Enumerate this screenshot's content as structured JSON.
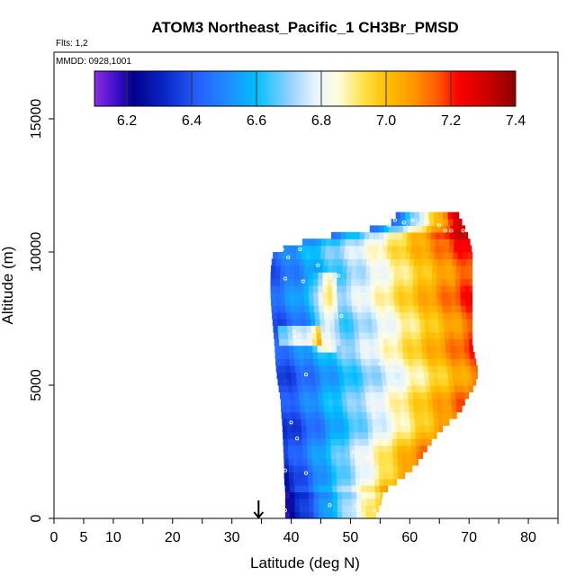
{
  "chart_data": {
    "type": "heatmap",
    "title": "ATOM3 Northeast_Pacific_1 CH3Br_PMSD",
    "flights_label": "Flts: 1,2",
    "dates_label": "MMDD: 0928,1001",
    "xlabel": "Latitude (deg N)",
    "ylabel": "Altitude (m)",
    "xlim": [
      0,
      85
    ],
    "ylim": [
      0,
      17500
    ],
    "x_ticks": [
      0,
      5,
      10,
      20,
      30,
      40,
      50,
      60,
      70,
      80
    ],
    "x_minor_ticks": [
      15,
      25,
      35,
      45,
      55,
      65,
      75,
      85
    ],
    "y_ticks": [
      0,
      5000,
      10000,
      15000
    ],
    "colorbar": {
      "min": 6.1,
      "max": 7.4,
      "ticks": [
        6.2,
        6.4,
        6.6,
        6.8,
        7.0,
        7.2,
        7.4
      ],
      "tick_labels": [
        "6.2",
        "6.4",
        "6.6",
        "6.8",
        "7.0",
        "7.2",
        "7.4"
      ],
      "stops": [
        {
          "v": 6.1,
          "c": "#8a2be2"
        },
        {
          "v": 6.17,
          "c": "#3a10c8"
        },
        {
          "v": 6.22,
          "c": "#00008b"
        },
        {
          "v": 6.32,
          "c": "#0a28c8"
        },
        {
          "v": 6.42,
          "c": "#2560ff"
        },
        {
          "v": 6.52,
          "c": "#1e90ff"
        },
        {
          "v": 6.6,
          "c": "#00bfff"
        },
        {
          "v": 6.7,
          "c": "#8fd0ff"
        },
        {
          "v": 6.78,
          "c": "#e6f4ff"
        },
        {
          "v": 6.85,
          "c": "#fffde0"
        },
        {
          "v": 6.93,
          "c": "#ffe14a"
        },
        {
          "v": 7.0,
          "c": "#ffc000"
        },
        {
          "v": 7.08,
          "c": "#ff9a00"
        },
        {
          "v": 7.16,
          "c": "#ff5a00"
        },
        {
          "v": 7.22,
          "c": "#ff0000"
        },
        {
          "v": 7.32,
          "c": "#c80000"
        },
        {
          "v": 7.4,
          "c": "#8b0000"
        }
      ]
    },
    "curtain_profile": {
      "altitudes": [
        0,
        500,
        1000,
        1500,
        2000,
        2500,
        3000,
        3500,
        4000,
        4500,
        5000,
        5500,
        6000,
        6500,
        7000,
        7500,
        8000,
        8500,
        9000,
        9500,
        10000,
        10500,
        11000,
        11500
      ],
      "lat_min": [
        39.0,
        39.0,
        39.0,
        38.8,
        38.8,
        38.7,
        38.6,
        38.5,
        38.3,
        38.2,
        37.8,
        37.5,
        37.3,
        37.2,
        37.0,
        36.8,
        36.6,
        36.5,
        36.5,
        36.6,
        37.0,
        43.5,
        56.5,
        58.0
      ],
      "lat_max": [
        54.0,
        55.0,
        55.5,
        58.5,
        61.0,
        62.5,
        64.0,
        66.0,
        68.5,
        69.5,
        71.0,
        71.5,
        71.0,
        70.5,
        70.5,
        70.5,
        70.5,
        70.5,
        70.5,
        70.5,
        70.5,
        70.0,
        69.0,
        68.0
      ]
    },
    "sample_points": [
      [
        37.0,
        10100
      ],
      [
        37.5,
        10100
      ],
      [
        38.0,
        10100
      ],
      [
        38.5,
        10100
      ],
      [
        39.5,
        9800
      ],
      [
        41.5,
        10100
      ],
      [
        39.0,
        9000
      ],
      [
        40.5,
        7000
      ],
      [
        40.5,
        6800
      ],
      [
        42.0,
        8900
      ],
      [
        44.5,
        9500
      ],
      [
        45.0,
        10800
      ],
      [
        46.0,
        7700
      ],
      [
        48.5,
        7600
      ],
      [
        48.0,
        9100
      ],
      [
        52.0,
        10800
      ],
      [
        54.0,
        8700
      ],
      [
        56.5,
        11000
      ],
      [
        57.5,
        11200
      ],
      [
        59.0,
        11100
      ],
      [
        60.5,
        11200
      ],
      [
        61.5,
        11000
      ],
      [
        63.0,
        11100
      ],
      [
        65.0,
        11000
      ],
      [
        66.0,
        10800
      ],
      [
        67.0,
        10800
      ],
      [
        69.0,
        10800
      ],
      [
        42.5,
        5400
      ],
      [
        55.0,
        5800
      ],
      [
        40.0,
        3600
      ],
      [
        41.0,
        3000
      ],
      [
        50.5,
        2500
      ],
      [
        53.0,
        2300
      ],
      [
        39.0,
        1800
      ],
      [
        42.5,
        1700
      ],
      [
        46.5,
        500
      ],
      [
        51.0,
        500
      ],
      [
        39.0,
        300
      ],
      [
        54.0,
        300
      ]
    ],
    "arrow_marker": {
      "latitude": 34.5
    }
  }
}
